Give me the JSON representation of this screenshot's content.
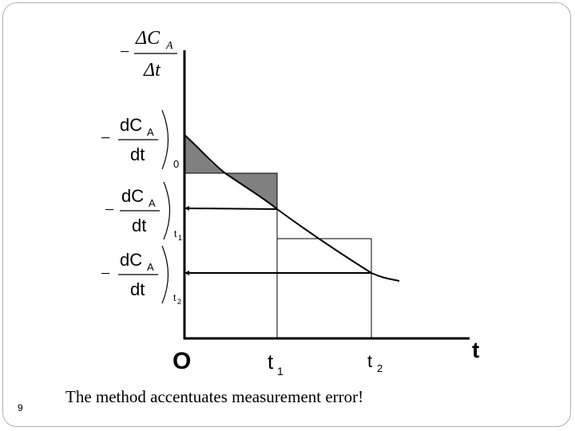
{
  "slide": {
    "number": "9",
    "caption": "The method accentuates measurement error!"
  },
  "y_axis_label": {
    "minus": "−",
    "numerator": "ΔC",
    "numerator_sub": "A",
    "denominator": "Δt"
  },
  "derivative_labels": [
    {
      "minus": "−",
      "numerator": "dC",
      "sub": "A",
      "denominator": "dt",
      "point": "0"
    },
    {
      "minus": "−",
      "numerator": "dC",
      "sub": "A",
      "denominator": "dt",
      "point": "t",
      "point_sub": "1"
    },
    {
      "minus": "−",
      "numerator": "dC",
      "sub": "A",
      "denominator": "dt",
      "point": "t",
      "point_sub": "2"
    }
  ],
  "x_axis": {
    "origin": "O",
    "t1": "t",
    "t1_sub": "1",
    "t2": "t",
    "t2_sub": "2",
    "axis_label": "t"
  },
  "colors": {
    "shaded_error": "#808080",
    "lines": "#000000"
  }
}
